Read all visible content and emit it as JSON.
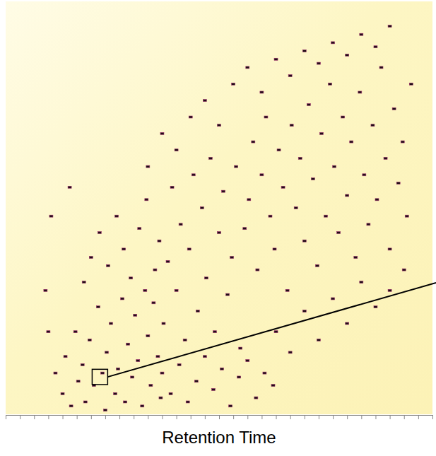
{
  "chart_data": {
    "type": "scatter",
    "x_label": "Retention Time",
    "marker": "square",
    "color": "#1c0f14",
    "tick_labels": false,
    "grid": false,
    "xlim": [
      0,
      30
    ],
    "ylim": [
      0,
      100
    ],
    "xticks": [
      0,
      1,
      2,
      3,
      4,
      5,
      6,
      7,
      8,
      9,
      10,
      11,
      12,
      13,
      14,
      15,
      16,
      17,
      18,
      19,
      20,
      21,
      22,
      23,
      24,
      25,
      26,
      27,
      28,
      29,
      30
    ],
    "annotations": [
      {
        "shape": "rect",
        "x": [
          6.08,
          7.17
        ],
        "y": [
          7.2,
          10.9
        ]
      }
    ],
    "x": [
      3.5,
      4.0,
      4.2,
      4.6,
      4.9,
      5.1,
      5.4,
      5.6,
      5.9,
      6.2,
      6.5,
      6.8,
      7.0,
      7.1,
      7.4,
      7.7,
      7.9,
      8.2,
      8.4,
      8.6,
      8.9,
      9.1,
      9.3,
      9.6,
      9.8,
      10.0,
      10.2,
      10.5,
      10.7,
      10.9,
      5.5,
      6.0,
      6.6,
      7.2,
      7.8,
      8.3,
      8.8,
      9.4,
      9.9,
      10.4,
      10.8,
      11.1,
      11.4,
      11.7,
      12.0,
      12.3,
      12.6,
      12.9,
      13.2,
      13.5,
      13.8,
      14.1,
      14.4,
      14.7,
      15.0,
      15.3,
      15.6,
      15.9,
      16.2,
      16.5,
      11.0,
      11.6,
      12.2,
      12.8,
      13.4,
      14.0,
      14.6,
      15.2,
      15.8,
      16.4,
      17.0,
      17.6,
      18.2,
      18.8,
      16.8,
      17.1,
      17.4,
      17.7,
      18.0,
      18.3,
      18.6,
      18.9,
      19.2,
      19.5,
      19.8,
      20.1,
      20.4,
      20.7,
      21.0,
      21.3,
      21.6,
      21.9,
      22.2,
      22.5,
      22.8,
      23.1,
      23.4,
      23.7,
      24.0,
      24.3,
      24.6,
      24.9,
      25.2,
      25.5,
      25.8,
      26.1,
      26.4,
      26.7,
      27.0,
      27.3,
      27.6,
      27.9,
      28.2,
      28.5,
      19.0,
      20.0,
      21.0,
      22.0,
      23.0,
      24.0,
      25.0,
      26.0,
      27.0,
      28.0,
      10.0,
      11.0,
      12.0,
      13.0,
      14.0,
      15.0,
      16.0,
      17.0,
      18.0,
      19.0,
      20.0,
      21.0,
      22.0,
      23.0,
      24.0,
      25.0,
      26.0,
      27.0,
      3.2,
      4.5,
      2.8,
      3.0
    ],
    "values": [
      10,
      5,
      14,
      2,
      20,
      8,
      12,
      3,
      18,
      7,
      26,
      10,
      1,
      15,
      22,
      5,
      11,
      28,
      3,
      17,
      9,
      24,
      13,
      2,
      30,
      19,
      7,
      35,
      14,
      4,
      32,
      38,
      44,
      36,
      48,
      40,
      33,
      45,
      52,
      27,
      42,
      22,
      37,
      55,
      30,
      46,
      18,
      40,
      58,
      25,
      50,
      33,
      62,
      20,
      44,
      54,
      29,
      38,
      60,
      16,
      10,
      5,
      12,
      3,
      8,
      14,
      6,
      11,
      2,
      9,
      13,
      4,
      10,
      7,
      45,
      52,
      66,
      35,
      58,
      72,
      48,
      40,
      64,
      55,
      30,
      70,
      50,
      62,
      42,
      75,
      57,
      36,
      68,
      48,
      80,
      60,
      44,
      72,
      53,
      66,
      38,
      78,
      58,
      46,
      70,
      52,
      84,
      62,
      40,
      74,
      56,
      66,
      48,
      80,
      20,
      15,
      25,
      18,
      28,
      22,
      32,
      26,
      30,
      35,
      60,
      68,
      64,
      72,
      76,
      70,
      80,
      84,
      78,
      86,
      82,
      88,
      85,
      90,
      87,
      92,
      89,
      94,
      48,
      55,
      30,
      20
    ]
  }
}
